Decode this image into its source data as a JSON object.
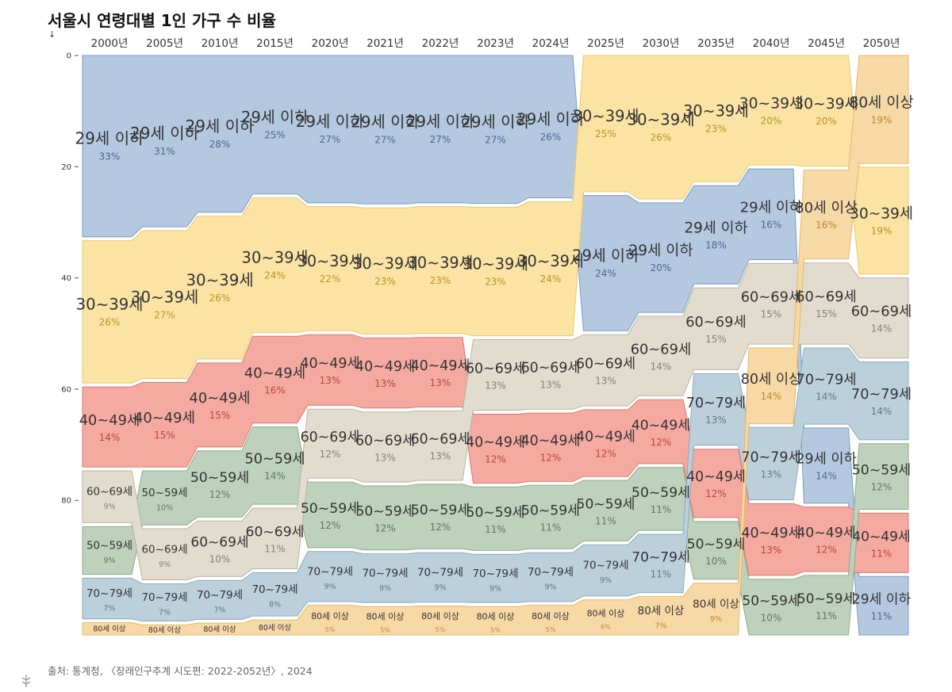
{
  "chart_data": {
    "type": "area",
    "title": "서울시 연령대별 1인 가구 수 비율",
    "y_axis_arrow": "↓",
    "source": "출처: 통계청, 〈장래인구추계 시도편: 2022-2052년〉, 2024",
    "x": [
      "2000년",
      "2005년",
      "2010년",
      "2015년",
      "2020년",
      "2021년",
      "2022년",
      "2023년",
      "2024년",
      "2025년",
      "2030년",
      "2035년",
      "2040년",
      "2045년",
      "2050년"
    ],
    "yticks": [
      0,
      20,
      40,
      60,
      80
    ],
    "ylim": [
      0,
      100
    ],
    "grid": false,
    "legend": "none",
    "colors": {
      "29세 이하": "#b4c9e0",
      "30~39세": "#fbe3a4",
      "40~49세": "#f5aaa1",
      "50~59세": "#bed1bc",
      "60~69세": "#e2dccf",
      "70~79세": "#bcd0dc",
      "80세 이상": "#f7d9a6"
    },
    "stroke_colors": {
      "29세 이하": "#6f93c3",
      "30~39세": "#e8c560",
      "40~49세": "#dc6e62",
      "50~59세": "#84a77f",
      "60~69세": "#b8ad99",
      "70~79세": "#86a5ba",
      "80세 이상": "#e6b35c"
    },
    "pct_colors": {
      "29세 이하": "#4a6891",
      "30~39세": "#b99324",
      "40~49세": "#b8453a",
      "50~59세": "#5b7c56",
      "60~69세": "#8b806a",
      "70~79세": "#5b788c",
      "80세 이상": "#b98a30"
    },
    "series": [
      {
        "name": "29세 이하",
        "values": [
          32.6,
          30.8,
          28.2,
          24.9,
          26.5,
          26.7,
          26.5,
          26.6,
          25.6,
          24.3,
          19.7,
          17.7,
          16.3,
          13.5,
          10.5
        ]
      },
      {
        "name": "30~39세",
        "values": [
          25.6,
          26.6,
          25.7,
          24.2,
          22.3,
          22.7,
          22.8,
          23.1,
          24.1,
          24.5,
          25.8,
          22.7,
          19.7,
          19.9,
          19.2
        ]
      },
      {
        "name": "40~49세",
        "values": [
          14.4,
          15.2,
          15.1,
          15.6,
          12.7,
          12.6,
          12.5,
          12.4,
          12.3,
          12.0,
          11.5,
          12.3,
          12.9,
          11.6,
          10.7
        ]
      },
      {
        "name": "50~59세",
        "values": [
          8.6,
          9.7,
          11.9,
          13.9,
          11.8,
          11.5,
          11.6,
          11.4,
          11.4,
          10.9,
          11.3,
          10.4,
          10.0,
          10.7,
          11.8
        ]
      },
      {
        "name": "60~69세",
        "values": [
          9.3,
          9.2,
          10.0,
          10.9,
          12.4,
          12.6,
          12.5,
          12.7,
          12.5,
          12.8,
          14.3,
          14.7,
          14.5,
          14.6,
          14.4
        ]
      },
      {
        "name": "70~79세",
        "values": [
          7.3,
          6.7,
          7.0,
          7.8,
          9.0,
          8.8,
          8.9,
          8.7,
          8.8,
          9.2,
          10.5,
          12.9,
          13.0,
          13.7,
          14.0
        ]
      },
      {
        "name": "80세 이상",
        "values": [
          2.2,
          1.8,
          2.1,
          2.7,
          5.3,
          5.1,
          5.2,
          5.1,
          5.3,
          6.3,
          6.9,
          9.3,
          13.6,
          16.0,
          19.4
        ]
      }
    ]
  }
}
